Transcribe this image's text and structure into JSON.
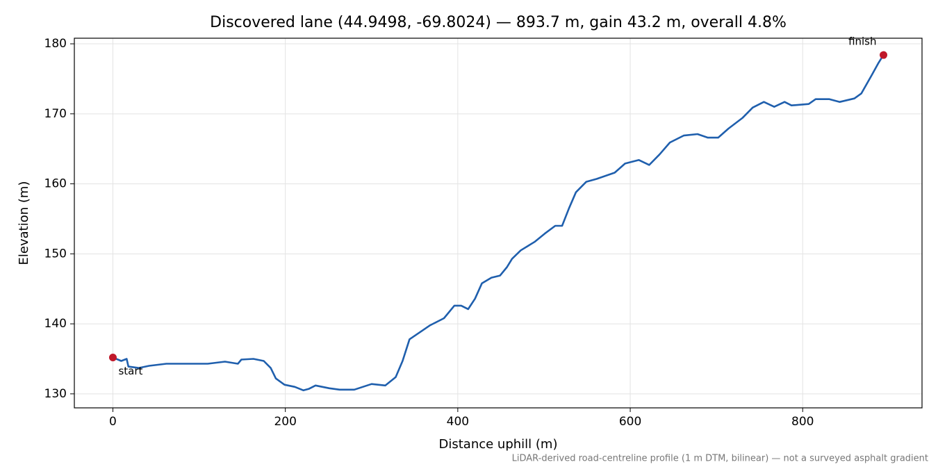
{
  "chart_data": {
    "type": "line",
    "title": "Discovered lane (44.9498, -69.8024) — 893.7 m, gain 43.2 m, overall 4.8%",
    "x_label": "Distance uphill (m)",
    "y_label": "Elevation (m)",
    "footnote": "LiDAR-derived road-centreline profile (1 m DTM, bilinear) — not a surveyed asphalt gradient",
    "x": [
      0,
      9.7,
      16,
      18,
      30,
      42,
      62,
      86,
      110,
      130,
      145,
      149,
      163,
      175,
      183,
      189,
      199,
      211,
      221,
      227,
      235,
      251,
      263,
      280,
      300,
      316,
      328,
      336,
      344,
      356,
      368,
      384,
      396,
      404,
      412,
      420,
      428,
      439,
      449,
      457,
      463,
      473,
      489,
      501,
      513,
      521,
      529,
      537,
      549,
      561,
      582,
      594,
      610,
      622,
      634,
      646,
      662,
      678,
      690,
      702,
      714,
      730,
      742,
      755,
      767,
      779,
      787,
      807,
      815,
      831,
      843,
      860,
      868,
      880,
      888,
      893.7
    ],
    "series": [
      {
        "name": "Elevation",
        "color": "#1f5fad",
        "values": [
          135.2,
          134.7,
          135.0,
          133.9,
          133.7,
          134.0,
          134.3,
          134.3,
          134.3,
          134.6,
          134.3,
          134.9,
          135.0,
          134.7,
          133.7,
          132.2,
          131.3,
          131.0,
          130.5,
          130.7,
          131.2,
          130.8,
          130.6,
          130.6,
          131.4,
          131.2,
          132.4,
          134.7,
          137.8,
          138.8,
          139.8,
          140.8,
          142.6,
          142.6,
          142.1,
          143.6,
          145.8,
          146.6,
          146.9,
          148.1,
          149.3,
          150.5,
          151.7,
          152.9,
          154.0,
          154.0,
          156.5,
          158.8,
          160.3,
          160.7,
          161.6,
          162.9,
          163.4,
          162.7,
          164.2,
          165.9,
          166.9,
          167.1,
          166.6,
          166.6,
          167.9,
          169.4,
          170.9,
          171.7,
          171.0,
          171.7,
          171.2,
          171.4,
          172.1,
          172.1,
          171.7,
          172.2,
          172.9,
          175.5,
          177.3,
          178.4
        ]
      }
    ],
    "markers": [
      {
        "label": "start",
        "x": 0,
        "y": 135.2,
        "color": "#c0182a"
      },
      {
        "label": "finish",
        "x": 893.7,
        "y": 178.4,
        "color": "#c0182a"
      }
    ],
    "xlim": [
      -44.7,
      938.4
    ],
    "ylim": [
      128.0,
      180.8
    ],
    "xticks": [
      0,
      200,
      400,
      600,
      800
    ],
    "yticks": [
      130,
      140,
      150,
      160,
      170,
      180
    ],
    "grid": true
  }
}
